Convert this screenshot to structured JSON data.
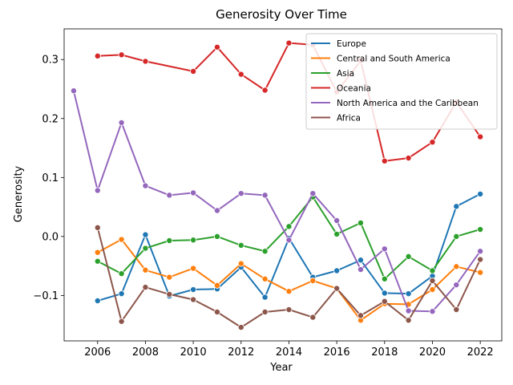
{
  "chart_data": {
    "type": "line",
    "title": "Generosity Over Time",
    "xlabel": "Year",
    "ylabel": "Generosity",
    "xlim": [
      2004.6,
      2022.9
    ],
    "ylim": [
      -0.177,
      0.352
    ],
    "x_ticks": [
      2006,
      2008,
      2010,
      2012,
      2014,
      2016,
      2018,
      2020,
      2022
    ],
    "y_ticks": [
      -0.1,
      0.0,
      0.1,
      0.2,
      0.3
    ],
    "y_tick_labels": [
      "−0.1",
      "0.0",
      "0.1",
      "0.2",
      "0.3"
    ],
    "grid": false,
    "legend": "top-right",
    "series": [
      {
        "name": "Europe",
        "color": "#1f77b4",
        "x": [
          2006,
          2007,
          2008,
          2009,
          2010,
          2011,
          2012,
          2013,
          2014,
          2015,
          2016,
          2017,
          2018,
          2019,
          2020,
          2021,
          2022
        ],
        "y": [
          -0.109,
          -0.097,
          0.003,
          -0.101,
          -0.09,
          -0.089,
          -0.052,
          -0.103,
          -0.003,
          -0.069,
          -0.058,
          -0.04,
          -0.096,
          -0.097,
          -0.067,
          0.051,
          0.072
        ]
      },
      {
        "name": "Central and South America",
        "color": "#ff7f0e",
        "x": [
          2006,
          2007,
          2008,
          2009,
          2010,
          2011,
          2012,
          2013,
          2014,
          2015,
          2016,
          2017,
          2018,
          2019,
          2020,
          2021,
          2022
        ],
        "y": [
          -0.027,
          -0.005,
          -0.057,
          -0.069,
          -0.054,
          -0.083,
          -0.046,
          -0.072,
          -0.093,
          -0.075,
          -0.088,
          -0.142,
          -0.114,
          -0.115,
          -0.09,
          -0.051,
          -0.061
        ]
      },
      {
        "name": "Asia",
        "color": "#2ca02c",
        "x": [
          2006,
          2007,
          2008,
          2009,
          2010,
          2011,
          2012,
          2013,
          2014,
          2015,
          2016,
          2017,
          2018,
          2019,
          2020,
          2021,
          2022
        ],
        "y": [
          -0.042,
          -0.063,
          -0.02,
          -0.007,
          -0.006,
          0.0,
          -0.015,
          -0.025,
          0.017,
          0.067,
          0.004,
          0.023,
          -0.072,
          -0.034,
          -0.058,
          0.0,
          0.012
        ]
      },
      {
        "name": "Oceania",
        "color": "#d62728",
        "x": [
          2006,
          2007,
          2008,
          2010,
          2011,
          2012,
          2013,
          2014,
          2015,
          2016,
          2017,
          2018,
          2019,
          2020,
          2021,
          2022
        ],
        "y": [
          0.306,
          0.308,
          0.297,
          0.28,
          0.321,
          0.275,
          0.248,
          0.328,
          0.325,
          0.245,
          0.298,
          0.128,
          0.133,
          0.16,
          0.228,
          0.169
        ]
      },
      {
        "name": "North America and the Caribbean",
        "color": "#9467bd",
        "x": [
          2005,
          2006,
          2007,
          2008,
          2009,
          2010,
          2011,
          2012,
          2013,
          2014,
          2015,
          2016,
          2017,
          2018,
          2019,
          2020,
          2021,
          2022
        ],
        "y": [
          0.247,
          0.078,
          0.193,
          0.086,
          0.07,
          0.074,
          0.044,
          0.073,
          0.07,
          -0.006,
          0.073,
          0.027,
          -0.056,
          -0.021,
          -0.126,
          -0.127,
          -0.082,
          -0.025
        ]
      },
      {
        "name": "Africa",
        "color": "#8c564b",
        "x": [
          2006,
          2007,
          2008,
          2009,
          2010,
          2011,
          2012,
          2013,
          2014,
          2015,
          2016,
          2017,
          2018,
          2019,
          2020,
          2021,
          2022
        ],
        "y": [
          0.015,
          -0.144,
          -0.086,
          -0.098,
          -0.107,
          -0.128,
          -0.154,
          -0.128,
          -0.124,
          -0.137,
          -0.088,
          -0.134,
          -0.11,
          -0.142,
          -0.075,
          -0.124,
          -0.039
        ]
      }
    ]
  }
}
